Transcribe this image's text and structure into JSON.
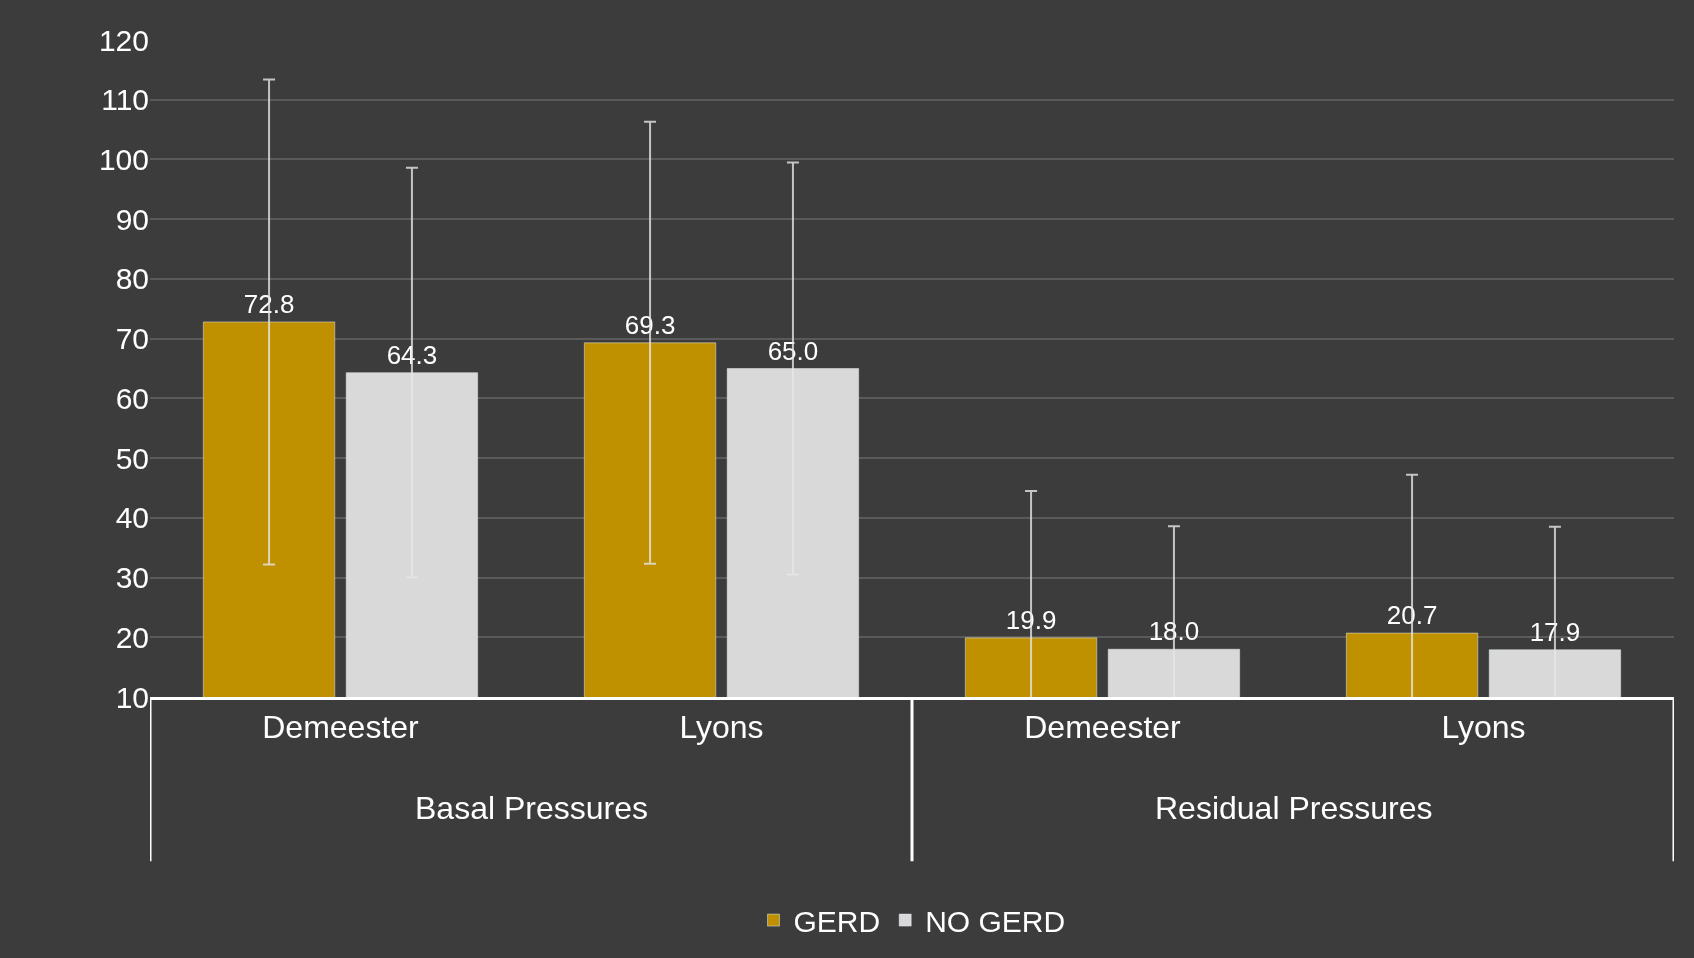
{
  "chart_data": {
    "type": "bar",
    "categories": [
      "Demeester",
      "Lyons",
      "Demeester",
      "Lyons"
    ],
    "annotations": [
      "Basal Pressures",
      "Residual Pressures"
    ],
    "series": [
      {
        "name": "GERD",
        "color": "#bf9000",
        "values": [
          72.8,
          69.3,
          19.9,
          20.7
        ],
        "value_labels": [
          "72.8",
          "69.3",
          "19.9",
          "20.7"
        ],
        "errors": [
          40.6,
          37.0,
          24.6,
          26.5
        ]
      },
      {
        "name": "NO GERD",
        "color": "#d9d9d9",
        "values": [
          64.3,
          65.0,
          18.0,
          17.9
        ],
        "value_labels": [
          "64.3",
          "65.0",
          "18.0",
          "17.9"
        ],
        "errors": [
          34.3,
          34.5,
          20.6,
          20.6
        ]
      }
    ],
    "ylim": [
      10,
      120
    ],
    "yticks": [
      10,
      20,
      30,
      40,
      50,
      60,
      70,
      80,
      90,
      100,
      110,
      120
    ],
    "grid": "y",
    "legend": "bottom"
  }
}
